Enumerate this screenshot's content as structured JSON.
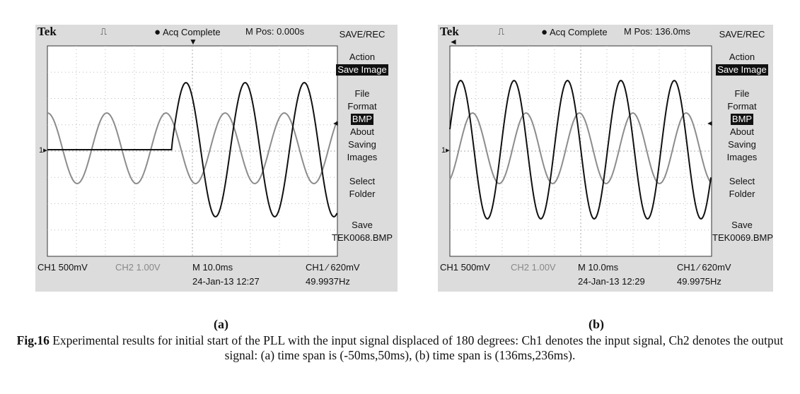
{
  "figure": {
    "caption_label": "Fig.16",
    "caption_text": " Experimental results for initial start of the PLL with the input signal displaced of 180 degrees: Ch1 denotes the input signal, Ch2 denotes the output signal: (a) time span is (-50ms,50ms), (b) time span is (136ms,236ms).",
    "panel_a_label": "(a)",
    "panel_b_label": "(b)"
  },
  "panel_a": {
    "brand": "Tek",
    "acq": "Acq Complete",
    "mpos": "M Pos: 0.000s",
    "menu_title": "SAVE/REC",
    "action_label": "Action",
    "action_value": "Save Image",
    "file_label_1": "File",
    "file_label_2": "Format",
    "file_value": "BMP",
    "about_1": "About",
    "about_2": "Saving",
    "about_3": "Images",
    "select_1": "Select",
    "select_2": "Folder",
    "save_label": "Save",
    "save_file": "TEK0068.BMP",
    "ch1": "CH1  500mV",
    "ch2": "CH2  1.00V",
    "timebase": "M 10.0ms",
    "trigger": "CH1 ⁄ 620mV",
    "date": "24-Jan-13 12:27",
    "freq": "49.9937Hz"
  },
  "panel_b": {
    "brand": "Tek",
    "acq": "Acq Complete",
    "mpos": "M Pos: 136.0ms",
    "menu_title": "SAVE/REC",
    "action_label": "Action",
    "action_value": "Save Image",
    "file_label_1": "File",
    "file_label_2": "Format",
    "file_value": "BMP",
    "about_1": "About",
    "about_2": "Saving",
    "about_3": "Images",
    "select_1": "Select",
    "select_2": "Folder",
    "save_label": "Save",
    "save_file": "TEK0069.BMP",
    "ch1": "CH1  500mV",
    "ch2": "CH2  1.00V",
    "timebase": "M 10.0ms",
    "trigger": "CH1 ⁄ 620mV",
    "date": "24-Jan-13 12:29",
    "freq": "49.9975Hz"
  },
  "colors": {
    "ch1": "#111111",
    "ch2": "#8c8c8c",
    "screen_bg": "#ffffff",
    "bezel": "#dcdcdc"
  }
}
